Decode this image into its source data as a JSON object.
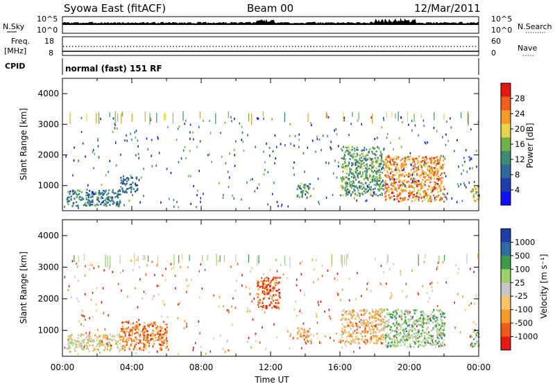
{
  "header": {
    "title": "Syowa East (fitACF)",
    "beam": "Beam 00",
    "date": "12/Mar/2011"
  },
  "status_panels": {
    "nsky_label": "N.Sky",
    "nsky_ticks": [
      "10^5",
      "10^0"
    ],
    "nsearch_label": "N.Search",
    "nsearch_ticks": [
      "10^5",
      "10^0"
    ],
    "freq_label_1": "Freq.",
    "freq_label_2": "[MHz]",
    "freq_ticks": [
      "18",
      "8"
    ],
    "nave_label": "Nave",
    "nave_ticks": [
      "60",
      "0"
    ],
    "cpid_label": "CPID",
    "cpid_text": "normal (fast) 151 RF"
  },
  "colors": {
    "power_scale": [
      "#1010ff",
      "#1f3fa8",
      "#2f6a9a",
      "#3d8c70",
      "#6fb24a",
      "#e8d44c",
      "#f39a2a",
      "#f0601c",
      "#e21b12"
    ],
    "velocity_scale": [
      "#e21b12",
      "#ee5a18",
      "#f39a2a",
      "#f6c56a",
      "#c7c7c7",
      "#9bd36a",
      "#3c9a4a",
      "#2f6aa0",
      "#1f3fa8"
    ]
  },
  "chart_data": [
    {
      "type": "heatmap",
      "panel": "power",
      "ylabel": "Slant Range [km]",
      "xlabel": "",
      "x_ticks": [
        "00:00",
        "04:00",
        "08:00",
        "12:00",
        "16:00",
        "20:00",
        "00:00"
      ],
      "y_ticks": [
        1000,
        2000,
        3000,
        4000
      ],
      "xlim_hours": [
        0,
        24
      ],
      "ylim_km": [
        180,
        4500
      ],
      "colorbar_label": "Power [dB]",
      "colorbar_ticks": [
        "28",
        "24",
        "20",
        "16",
        "12",
        "8",
        "4"
      ],
      "colorbar_range": [
        0,
        30
      ],
      "echo_regions": [
        {
          "t0": 0.2,
          "t1": 3.3,
          "r0": 350,
          "r1": 900,
          "level": 0.35
        },
        {
          "t0": 3.3,
          "t1": 4.3,
          "r0": 800,
          "r1": 1300,
          "level": 0.3
        },
        {
          "t0": 13.5,
          "t1": 14.3,
          "r0": 650,
          "r1": 1100,
          "level": 0.4
        },
        {
          "t0": 16.0,
          "t1": 18.5,
          "r0": 700,
          "r1": 2300,
          "level": 0.45
        },
        {
          "t0": 18.5,
          "t1": 22.0,
          "r0": 500,
          "r1": 2000,
          "level": 0.75
        },
        {
          "t0": 23.5,
          "t1": 24.0,
          "r0": 500,
          "r1": 1000,
          "level": 0.6
        }
      ]
    },
    {
      "type": "heatmap",
      "panel": "velocity",
      "ylabel": "Slant Range [km]",
      "xlabel": "Time UT",
      "x_ticks": [
        "00:00",
        "04:00",
        "08:00",
        "12:00",
        "16:00",
        "20:00",
        "00:00"
      ],
      "y_ticks": [
        1000,
        2000,
        3000,
        4000
      ],
      "xlim_hours": [
        0,
        24
      ],
      "ylim_km": [
        180,
        4500
      ],
      "colorbar_label": "Velocity [m s⁻¹]",
      "colorbar_ticks": [
        "1000",
        "500",
        "100",
        "25",
        "-25",
        "-100",
        "-500",
        "-1000"
      ],
      "colorbar_range": [
        -1000,
        1000
      ],
      "echo_regions": [
        {
          "t0": 0.2,
          "t1": 3.3,
          "r0": 350,
          "r1": 900,
          "level": 0.45
        },
        {
          "t0": 3.3,
          "t1": 6.0,
          "r0": 400,
          "r1": 1300,
          "level": 0.25
        },
        {
          "t0": 11.2,
          "t1": 12.5,
          "r0": 1700,
          "r1": 2700,
          "level": 0.15
        },
        {
          "t0": 13.5,
          "t1": 14.3,
          "r0": 650,
          "r1": 1100,
          "level": 0.3
        },
        {
          "t0": 16.0,
          "t1": 18.5,
          "r0": 600,
          "r1": 1700,
          "level": 0.35
        },
        {
          "t0": 18.5,
          "t1": 22.0,
          "r0": 500,
          "r1": 1700,
          "level": 0.62
        },
        {
          "t0": 23.5,
          "t1": 24.0,
          "r0": 500,
          "r1": 1000,
          "level": 0.6
        }
      ]
    }
  ]
}
